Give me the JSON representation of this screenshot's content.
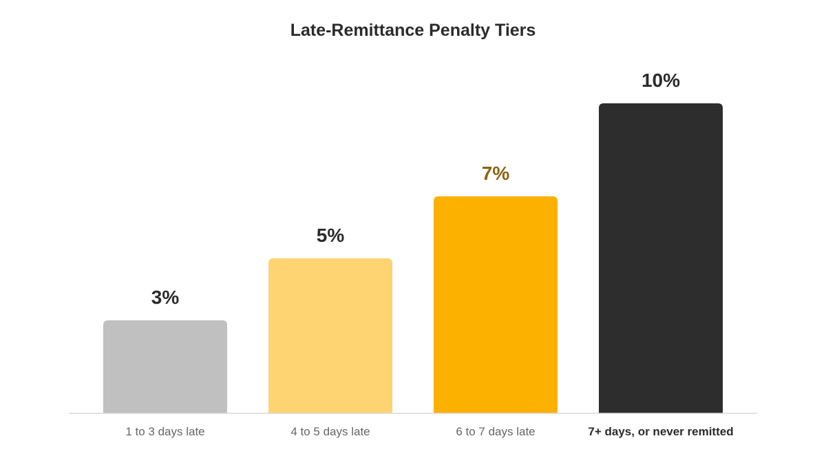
{
  "chart_data": {
    "type": "bar",
    "title": "Late-Remittance Penalty Tiers",
    "categories": [
      "1 to 3 days late",
      "4 to 5 days late",
      "6 to 7 days late",
      "7+ days, or never remitted"
    ],
    "values": [
      3,
      5,
      7,
      10
    ],
    "value_labels": [
      "3%",
      "5%",
      "7%",
      "10%"
    ],
    "unit": "%",
    "ylim": [
      0,
      11.33
    ],
    "grid": false,
    "legend": "none",
    "colors": {
      "bars": [
        "#c0c0c0",
        "#fdd471",
        "#fcb000",
        "#2d2d2d"
      ],
      "value_labels": [
        "#2b2b2b",
        "#2b2b2b",
        "#8a6410",
        "#2b2b2b"
      ],
      "category_labels": [
        "#666666",
        "#666666",
        "#666666",
        "#2b2b2b"
      ],
      "category_bold": [
        false,
        false,
        false,
        true
      ],
      "baseline": "#d9d9d9",
      "title": "#2b2b2b"
    }
  }
}
